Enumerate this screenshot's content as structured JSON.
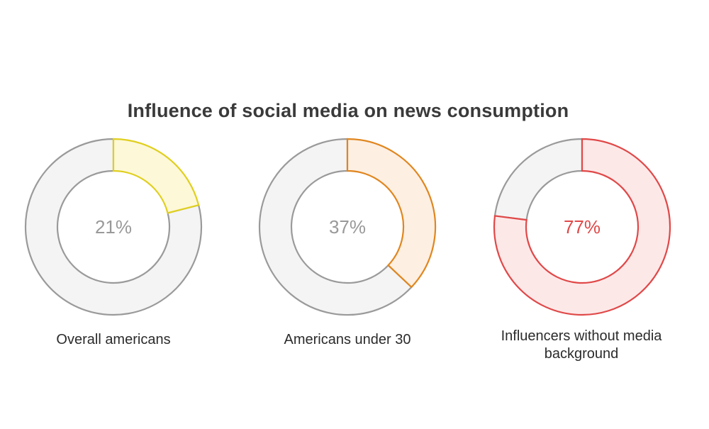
{
  "chart_data": {
    "type": "donut",
    "title": "Influence of social media on news consumption",
    "charts": [
      {
        "label": "Overall americans",
        "value": 21,
        "display": "21%",
        "color": "#e0cf1f",
        "fill": "#fdf8d8",
        "text_color": "#999999"
      },
      {
        "label": "Americans under 30",
        "value": 37,
        "display": "37%",
        "color": "#e0861f",
        "fill": "#fdefe2",
        "text_color": "#999999"
      },
      {
        "label": "Influencers without media background",
        "value": 77,
        "display": "77%",
        "color": "#e04848",
        "fill": "#fde8e8",
        "text_color": "#e04848"
      }
    ],
    "remainder_color": "#9a9a9a",
    "remainder_fill": "#f4f4f4"
  }
}
